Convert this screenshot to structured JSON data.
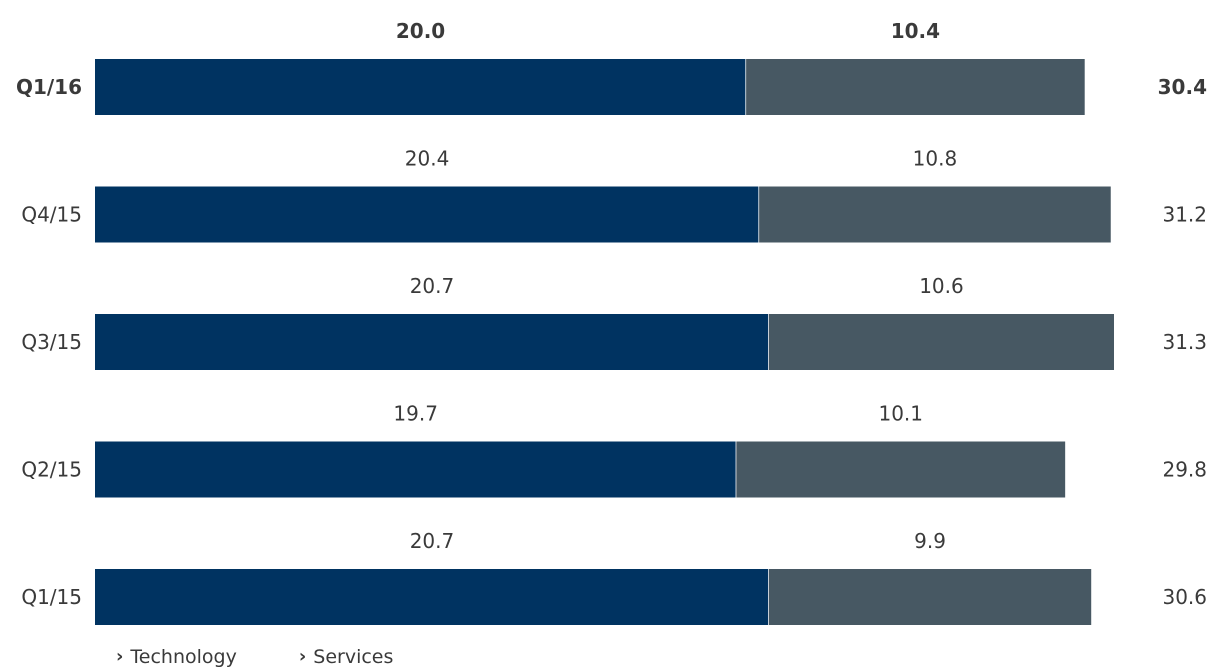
{
  "chart_data": {
    "type": "bar",
    "orientation": "horizontal",
    "stacked": true,
    "categories": [
      "Q1/16",
      "Q4/15",
      "Q3/15",
      "Q2/15",
      "Q1/15"
    ],
    "highlight_category": "Q1/16",
    "series": [
      {
        "name": "Technology",
        "color": "#003361",
        "values": [
          20.0,
          20.4,
          20.7,
          19.7,
          20.7
        ],
        "labels": [
          "20.0",
          "20.4",
          "20.7",
          "19.7",
          "20.7"
        ]
      },
      {
        "name": "Services",
        "color": "#475863",
        "values": [
          10.4,
          10.8,
          10.6,
          10.1,
          9.9
        ],
        "labels": [
          "10.4",
          "10.8",
          "10.6",
          "10.1",
          "9.9"
        ]
      }
    ],
    "totals": [
      30.4,
      31.2,
      31.3,
      29.8,
      30.6
    ],
    "total_labels": [
      "30.4",
      "31.2",
      "31.3",
      "29.8",
      "30.6"
    ],
    "xlim": [
      0,
      31.3
    ],
    "grid": false,
    "legend_position": "bottom-left",
    "title": "",
    "xlabel": "",
    "ylabel": ""
  },
  "colors": {
    "label_text": "#3a3a3a",
    "separator": "#ffffff"
  },
  "icons": {
    "legend_marker": "chevron-right-icon"
  }
}
